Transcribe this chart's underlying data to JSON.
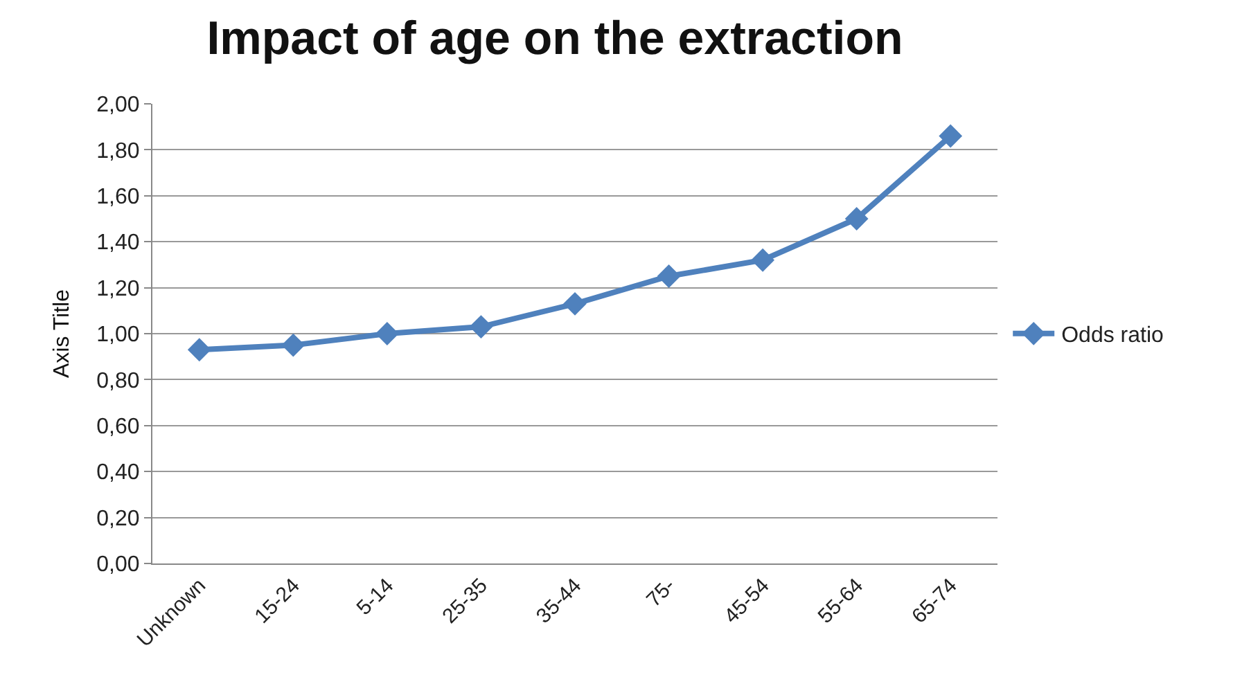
{
  "chart_data": {
    "type": "line",
    "title": "Impact of age on the extraction",
    "ylabel": "Axis Title",
    "categories": [
      "Unknown",
      "15-24",
      "5-14",
      "25-35",
      "35-44",
      "75-",
      "45-54",
      "55-64",
      "65-74"
    ],
    "series": [
      {
        "name": "Odds ratio",
        "color": "#4f81bd",
        "values": [
          0.93,
          0.95,
          1.0,
          1.03,
          1.13,
          1.25,
          1.32,
          1.5,
          1.86
        ]
      }
    ],
    "ylim": [
      0,
      2
    ],
    "yticks": [
      {
        "value": 0,
        "label": "0,00"
      },
      {
        "value": 0.2,
        "label": "0,20"
      },
      {
        "value": 0.4,
        "label": "0,40"
      },
      {
        "value": 0.6,
        "label": "0,60"
      },
      {
        "value": 0.8,
        "label": "0,80"
      },
      {
        "value": 1.0,
        "label": "1,00"
      },
      {
        "value": 1.2,
        "label": "1,20"
      },
      {
        "value": 1.4,
        "label": "1,40"
      },
      {
        "value": 1.6,
        "label": "1,60"
      },
      {
        "value": 1.8,
        "label": "1,80"
      },
      {
        "value": 2.0,
        "label": "2,00"
      }
    ],
    "grid": "y",
    "legend": "right",
    "marker": "diamond",
    "line_style": "solid"
  }
}
